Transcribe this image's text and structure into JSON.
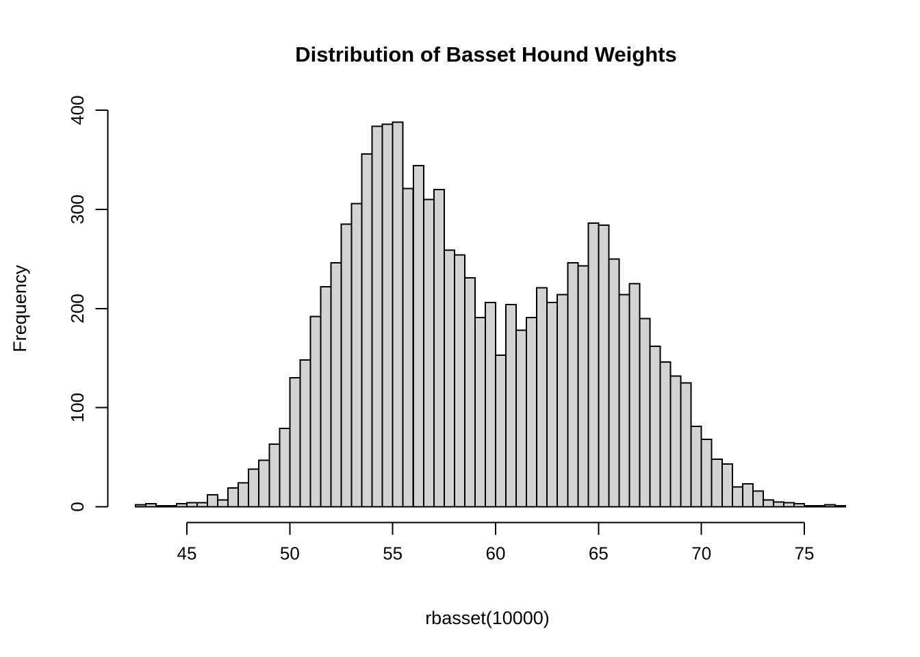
{
  "chart_data": {
    "type": "bar",
    "subtype": "histogram",
    "title": "Distribution of Basset Hound Weights",
    "xlabel": "rbasset(10000)",
    "ylabel": "Frequency",
    "bin_start": 42.5,
    "bin_width": 0.5,
    "counts": [
      2,
      3,
      1,
      1,
      3,
      4,
      4,
      12,
      7,
      19,
      24,
      38,
      47,
      63,
      79,
      130,
      148,
      192,
      222,
      246,
      285,
      306,
      356,
      384,
      386,
      388,
      321,
      344,
      310,
      320,
      259,
      254,
      231,
      191,
      206,
      153,
      204,
      178,
      191,
      221,
      206,
      214,
      246,
      243,
      286,
      284,
      250,
      214,
      225,
      190,
      162,
      146,
      132,
      125,
      81,
      68,
      48,
      43,
      20,
      23,
      16,
      7,
      5,
      4,
      3,
      1,
      1,
      2,
      1
    ],
    "x_ticks": [
      45,
      50,
      55,
      60,
      65,
      70,
      75
    ],
    "y_ticks": [
      0,
      100,
      200,
      300,
      400
    ],
    "xlim": [
      42.5,
      77
    ],
    "ylim": [
      0,
      400
    ],
    "grid": false,
    "legend": "none",
    "bar_fill": "#d3d3d3",
    "bar_stroke": "#000000",
    "axis_color": "#000000"
  }
}
